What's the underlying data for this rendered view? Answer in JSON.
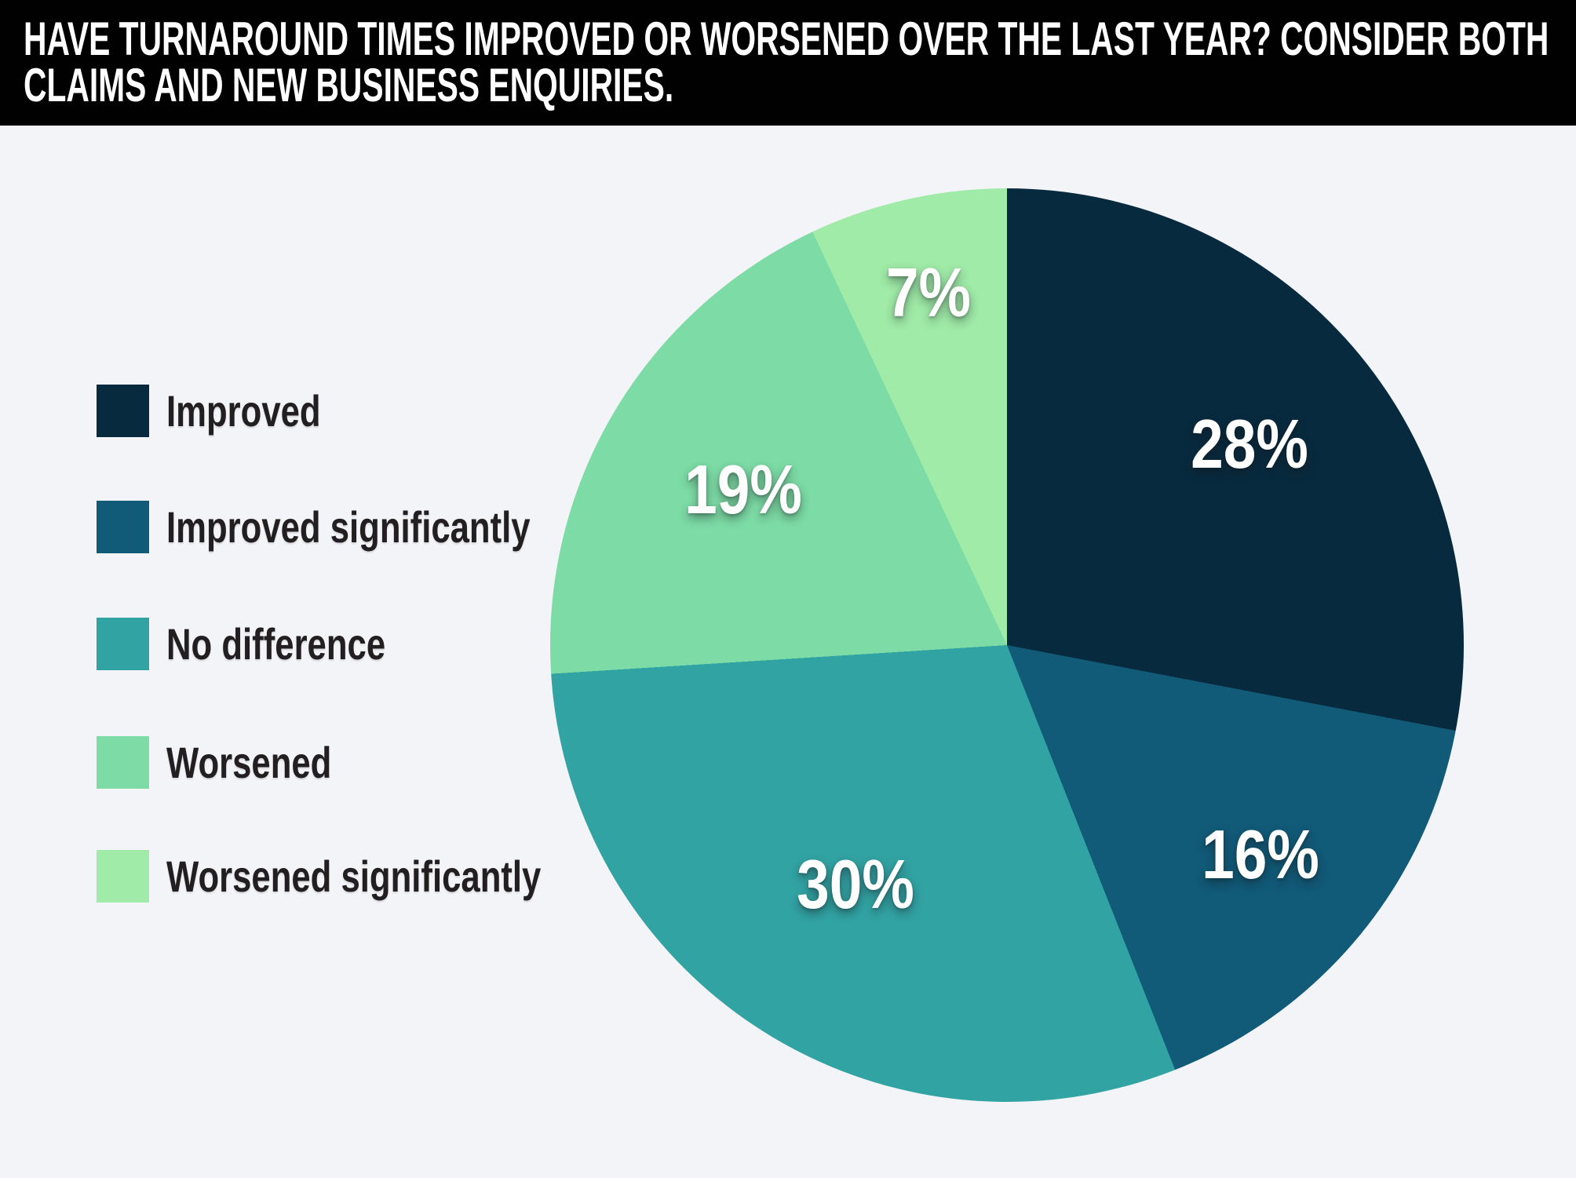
{
  "header": {
    "line1": "HAVE TURNAROUND TIMES IMPROVED OR WORSENED OVER THE LAST YEAR? CONSIDER BOTH",
    "line2": "CLAIMS AND NEW BUSINESS ENQUIRIES."
  },
  "colors": {
    "background": "#f2f4f8",
    "banner_background": "#010101",
    "banner_text": "#ffffff",
    "legend_text": "#231f20",
    "slice_label_text": "#ffffff"
  },
  "chart_data": {
    "type": "pie",
    "title": "HAVE TURNAROUND TIMES IMPROVED OR WORSENED OVER THE LAST YEAR? CONSIDER BOTH CLAIMS AND NEW BUSINESS ENQUIRIES.",
    "direction": "clockwise",
    "start_angle_deg": 0,
    "legend_position": "left",
    "slices": [
      {
        "label": "Improved",
        "value": 28,
        "display": "28%",
        "color": "#082a3e",
        "label_radius": 0.69
      },
      {
        "label": "Improved significantly",
        "value": 16,
        "display": "16%",
        "color": "#115a78",
        "label_radius": 0.72
      },
      {
        "label": "No difference",
        "value": 30,
        "display": "30%",
        "color": "#32a3a3",
        "label_radius": 0.62
      },
      {
        "label": "Worsened",
        "value": 19,
        "display": "19%",
        "color": "#7ddca5",
        "label_radius": 0.67
      },
      {
        "label": "Worsened significantly",
        "value": 7,
        "display": "7%",
        "color": "#a0eba8",
        "label_radius": 0.79
      }
    ]
  }
}
